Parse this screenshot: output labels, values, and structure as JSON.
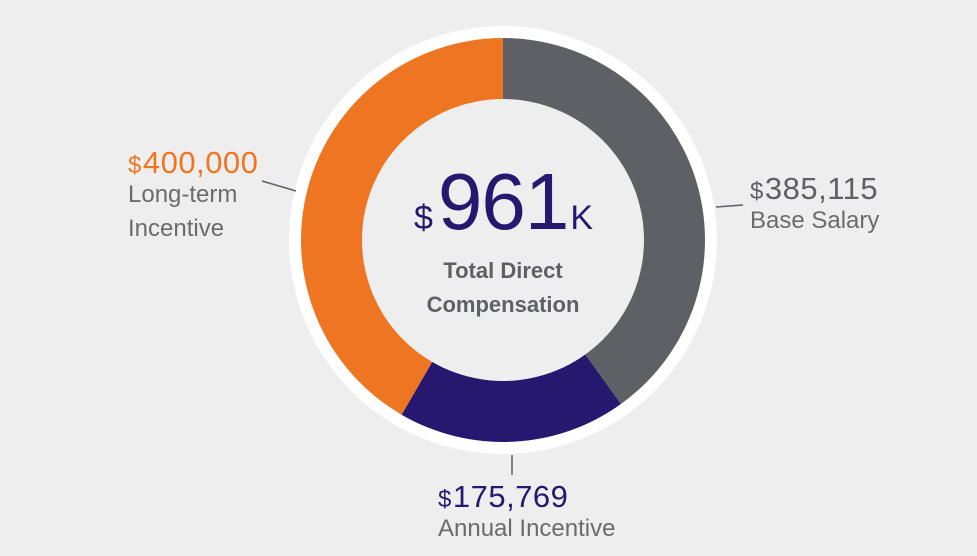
{
  "chart_data": {
    "type": "pie",
    "donut": true,
    "total": {
      "currency": "$",
      "value": "961",
      "unit": "K",
      "label": "Total Direct Compensation"
    },
    "slices": [
      {
        "label": "Base Salary",
        "currency": "$",
        "value": 385115,
        "display": "385,115",
        "color": "#5f6066"
      },
      {
        "label": "Annual Incentive",
        "currency": "$",
        "value": 175769,
        "display": "175,769",
        "color": "#25186e"
      },
      {
        "label": "Long-term Incentive",
        "currency": "$",
        "value": 400000,
        "display": "400,000",
        "color": "#ee7623"
      }
    ],
    "ring_color": "#ffffff",
    "background": "#eeeeee"
  }
}
